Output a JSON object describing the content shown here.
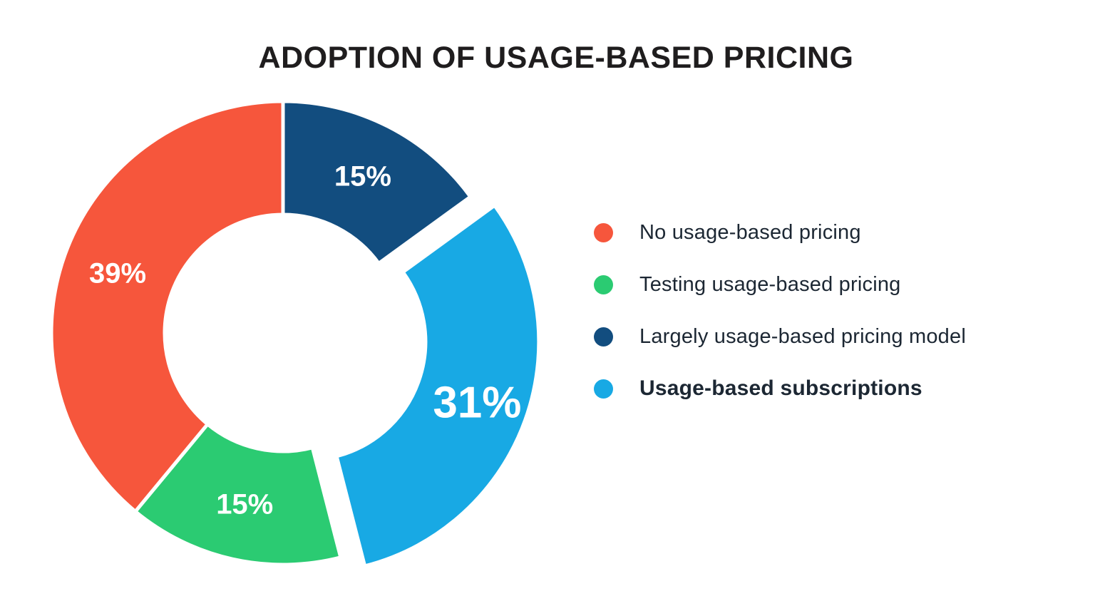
{
  "title": "ADOPTION OF USAGE-BASED PRICING",
  "colors": {
    "background": "#FFFFFF",
    "title_text": "#1F1D1E",
    "legend_text": "#1C2733",
    "slice_label_text": "#FFFFFF",
    "orange": "#F6563C",
    "green": "#2BCB72",
    "navy": "#124D7F",
    "light_blue": "#18A9E4"
  },
  "chart_data": {
    "type": "pie",
    "donut": true,
    "start_angle_deg": 0,
    "direction": "clockwise",
    "title": "ADOPTION OF USAGE-BASED PRICING",
    "unit": "%",
    "slices": [
      {
        "label": "Largely usage-based pricing model",
        "value": 15,
        "display": "15%",
        "color": "#124D7F",
        "exploded": false
      },
      {
        "label": "Usage-based subscriptions",
        "value": 31,
        "display": "31%",
        "color": "#18A9E4",
        "exploded": true
      },
      {
        "label": "Testing usage-based pricing",
        "value": 15,
        "display": "15%",
        "color": "#2BCB72",
        "exploded": false
      },
      {
        "label": "No usage-based pricing",
        "value": 39,
        "display": "39%",
        "color": "#F6563C",
        "exploded": false
      }
    ],
    "legend": {
      "position": "right",
      "items": [
        {
          "label": "No usage-based pricing",
          "color": "#F6563C",
          "bold": false
        },
        {
          "label": "Testing usage-based pricing",
          "color": "#2BCB72",
          "bold": false
        },
        {
          "label": "Largely usage-based pricing model",
          "color": "#124D7F",
          "bold": false
        },
        {
          "label": "Usage-based subscriptions",
          "color": "#18A9E4",
          "bold": true
        }
      ]
    }
  }
}
